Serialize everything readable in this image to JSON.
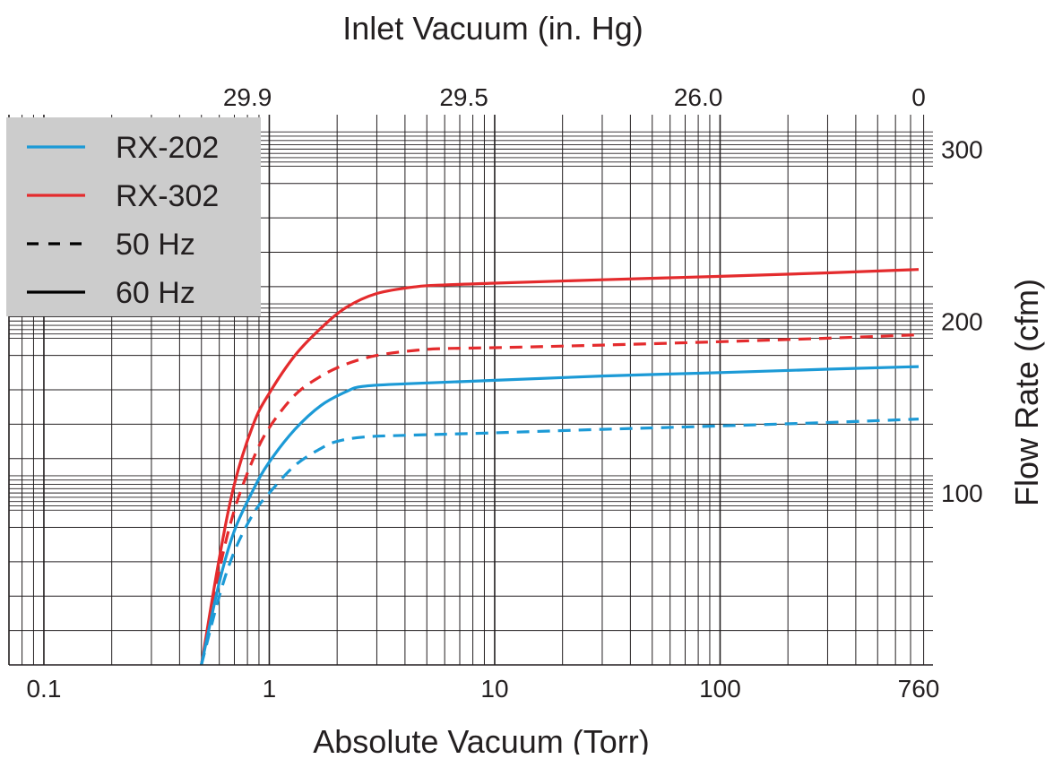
{
  "chart_data": {
    "type": "line",
    "x_axis": {
      "label": "Absolute Vacuum (Torr)",
      "scale": "log",
      "range": [
        0.07,
        880
      ],
      "ticks": [
        {
          "value": 0.1,
          "label": "0.1"
        },
        {
          "value": 1,
          "label": "1"
        },
        {
          "value": 10,
          "label": "10"
        },
        {
          "value": 100,
          "label": "100"
        },
        {
          "value": 760,
          "label": "760"
        }
      ]
    },
    "x2_axis": {
      "label": "Inlet Vacuum (in. Hg)",
      "position": "top",
      "ticks": [
        {
          "torr": 0.8,
          "label": "29.9"
        },
        {
          "torr": 7.3,
          "label": "29.5"
        },
        {
          "torr": 80,
          "label": "26.0"
        },
        {
          "torr": 760,
          "label": "0"
        }
      ]
    },
    "y_axis": {
      "label": "Flow Rate (cfm)",
      "position": "right",
      "range": [
        0,
        320
      ],
      "ticks": [
        {
          "value": 100,
          "label": "100"
        },
        {
          "value": 200,
          "label": "200"
        },
        {
          "value": 300,
          "label": "300"
        }
      ]
    },
    "grid": true,
    "legend": {
      "position": "top-left",
      "entries": [
        {
          "label": "RX-202",
          "style": "solid",
          "color": "#1c9ad6"
        },
        {
          "label": "RX-302",
          "style": "solid",
          "color": "#e42b2d"
        },
        {
          "label": "50 Hz",
          "style": "dashed",
          "color": "#000000"
        },
        {
          "label": "60 Hz",
          "style": "solid",
          "color": "#000000"
        }
      ]
    },
    "series": [
      {
        "model": "RX-302",
        "frequency": "60 Hz",
        "color": "#e42b2d",
        "dash": false,
        "x": [
          0.5,
          0.6,
          0.7,
          0.85,
          1.0,
          1.3,
          1.7,
          2.2,
          3.0,
          4.5,
          6.0,
          10,
          30,
          100,
          300,
          760
        ],
        "y": [
          0,
          62,
          105,
          140,
          158,
          180,
          196,
          208,
          216,
          220,
          221,
          222,
          224,
          226,
          228,
          230
        ]
      },
      {
        "model": "RX-302",
        "frequency": "50 Hz",
        "color": "#e42b2d",
        "dash": true,
        "x": [
          0.5,
          0.6,
          0.7,
          0.85,
          1.0,
          1.3,
          1.7,
          2.2,
          3.0,
          4.5,
          6.0,
          10,
          30,
          100,
          300,
          760
        ],
        "y": [
          0,
          55,
          90,
          120,
          138,
          157,
          168,
          175,
          180,
          183,
          184,
          184.5,
          186,
          188,
          190,
          192
        ]
      },
      {
        "model": "RX-202",
        "frequency": "60 Hz",
        "color": "#1c9ad6",
        "dash": false,
        "x": [
          0.5,
          0.6,
          0.7,
          0.85,
          1.0,
          1.3,
          1.7,
          2.2,
          2.6,
          4.0,
          10,
          30,
          100,
          300,
          760
        ],
        "y": [
          0,
          48,
          78,
          102,
          118,
          137,
          151,
          159,
          162,
          163.5,
          165.5,
          168,
          170,
          172,
          173.5
        ]
      },
      {
        "model": "RX-202",
        "frequency": "50 Hz",
        "color": "#1c9ad6",
        "dash": true,
        "x": [
          0.5,
          0.6,
          0.7,
          0.85,
          1.0,
          1.3,
          1.7,
          2.0,
          2.6,
          4.0,
          10,
          30,
          100,
          300,
          760
        ],
        "y": [
          0,
          40,
          66,
          88,
          100,
          116,
          126,
          130,
          132.5,
          133.5,
          135,
          137,
          139,
          141,
          143
        ]
      }
    ]
  }
}
